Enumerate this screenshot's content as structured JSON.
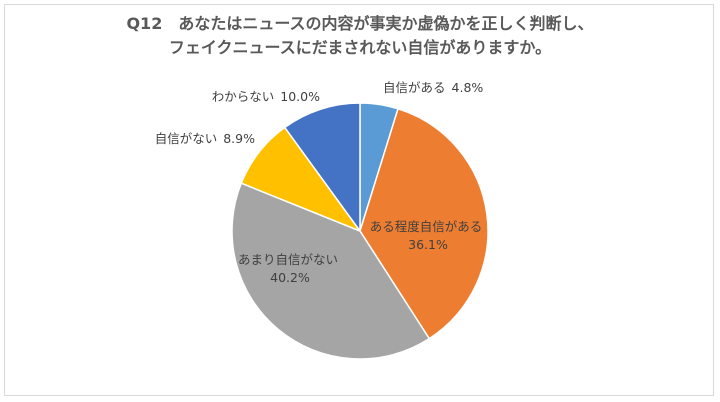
{
  "chart_data": {
    "type": "pie",
    "title": [
      "Q12　あなたはニュースの内容が事実か虚偽かを正しく判断し、",
      "フェイクニュースにだまされない自信がありますか。"
    ],
    "categories": [
      "自信がある",
      "ある程度自信がある",
      "あまり自信がない",
      "自信がない",
      "わからない"
    ],
    "values": [
      4.8,
      36.1,
      40.2,
      8.9,
      10.0
    ],
    "value_labels": [
      "4.8%",
      "36.1%",
      "40.2%",
      "8.9%",
      "10.0%"
    ],
    "colors": [
      "#5b9bd5",
      "#ed7d31",
      "#a5a5a5",
      "#ffc000",
      "#4472c4"
    ],
    "legend": "none",
    "start_angle": "12 o'clock, clockwise"
  }
}
